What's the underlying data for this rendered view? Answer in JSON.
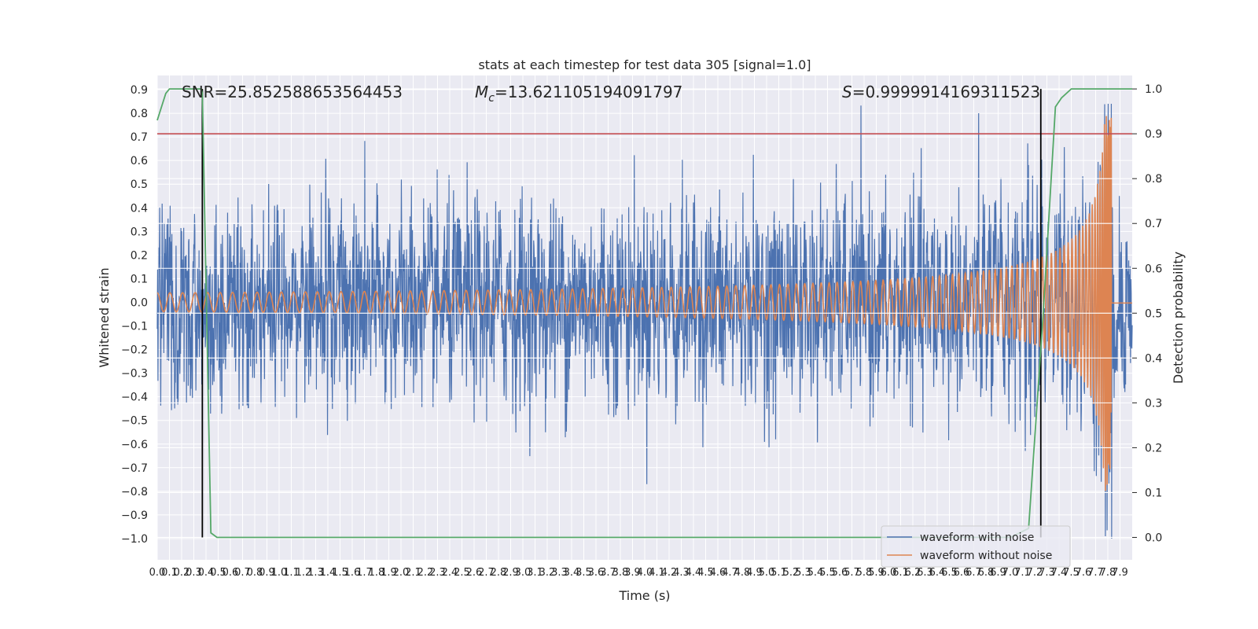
{
  "chart_data": {
    "type": "line",
    "title": "stats at each timestep for test data 305 [signal=1.0]",
    "xlabel": "Time (s)",
    "ylabel_left": "Whitened strain",
    "ylabel_right": "Detection probability",
    "xlim": [
      0.0,
      8.0
    ],
    "ylim_left": [
      -1.09,
      0.96
    ],
    "ylim_right": [
      -0.05,
      1.03
    ],
    "x_ticks": [
      "0.0",
      "0.1",
      "0.2",
      "0.3",
      "0.4",
      "0.5",
      "0.6",
      "0.7",
      "0.8",
      "0.9",
      "1.0",
      "1.1",
      "1.2",
      "1.3",
      "1.4",
      "1.5",
      "1.6",
      "1.7",
      "1.8",
      "1.9",
      "2.0",
      "2.1",
      "2.2",
      "2.3",
      "2.4",
      "2.5",
      "2.6",
      "2.7",
      "2.8",
      "2.9",
      "3.0",
      "3.1",
      "3.2",
      "3.3",
      "3.4",
      "3.5",
      "3.6",
      "3.7",
      "3.8",
      "3.9",
      "4.0",
      "4.1",
      "4.2",
      "4.3",
      "4.4",
      "4.5",
      "4.6",
      "4.7",
      "4.8",
      "4.9",
      "5.0",
      "5.1",
      "5.2",
      "5.3",
      "5.4",
      "5.5",
      "5.6",
      "5.7",
      "5.8",
      "5.9",
      "6.0",
      "6.1",
      "6.2",
      "6.3",
      "6.4",
      "6.5",
      "6.6",
      "6.7",
      "6.8",
      "6.9",
      "7.0",
      "7.1",
      "7.2",
      "7.3",
      "7.4",
      "7.5",
      "7.6",
      "7.7",
      "7.8",
      "7.9"
    ],
    "y_ticks_left": [
      "0.9",
      "0.8",
      "0.7",
      "0.6",
      "0.5",
      "0.4",
      "0.3",
      "0.2",
      "0.1",
      "0.0",
      "−0.1",
      "−0.2",
      "−0.3",
      "−0.4",
      "−0.5",
      "−0.6",
      "−0.7",
      "−0.8",
      "−0.9",
      "−1.0"
    ],
    "y_ticks_right": [
      "1.0",
      "0.9",
      "0.8",
      "0.7",
      "0.6",
      "0.5",
      "0.4",
      "0.3",
      "0.2",
      "0.1",
      "0.0"
    ],
    "annotations": {
      "snr": "SNR=25.852588653564453",
      "mc_symbol": "M",
      "mc_subscript": "c",
      "mc_value": "=13.621105194091797",
      "s_symbol": "S",
      "s_value": "=0.9999914169311523"
    },
    "threshold_line": {
      "axis": "right",
      "y": 0.9,
      "color": "#c44e52"
    },
    "vertical_lines": {
      "x": [
        0.37,
        7.25
      ],
      "color": "#000000"
    },
    "series": [
      {
        "name": "waveform with noise",
        "color": "#4c72b0",
        "axis": "left",
        "description": "noise approx. amplitude 0.25-0.5, peaks to ~0.84, min -1.0 at 7.83 s"
      },
      {
        "name": "waveform without noise",
        "color": "#dd8452",
        "axis": "left",
        "description": "chirp: amplitude 0.04 rising to 0.80 near 7.83 s, then flat ~0.0"
      },
      {
        "name": "detection probability",
        "color": "#55a868",
        "axis": "right",
        "x": [
          0.0,
          0.07,
          0.1,
          0.2,
          0.3,
          0.36,
          0.37,
          0.44,
          0.49,
          0.6,
          1.0,
          2.0,
          3.0,
          4.0,
          5.0,
          6.0,
          7.0,
          7.15,
          7.27,
          7.37,
          7.42,
          7.5,
          7.6,
          8.0
        ],
        "y": [
          0.93,
          0.99,
          1.0,
          1.0,
          1.0,
          1.0,
          0.99,
          0.01,
          0.0,
          0.0,
          0.0,
          0.0,
          0.0,
          0.0,
          0.0,
          0.0,
          0.0,
          0.02,
          0.5,
          0.96,
          0.98,
          1.0,
          1.0,
          1.0
        ]
      }
    ],
    "legend": {
      "position": "lower-right",
      "entries": [
        "waveform with noise",
        "waveform without noise"
      ]
    }
  }
}
